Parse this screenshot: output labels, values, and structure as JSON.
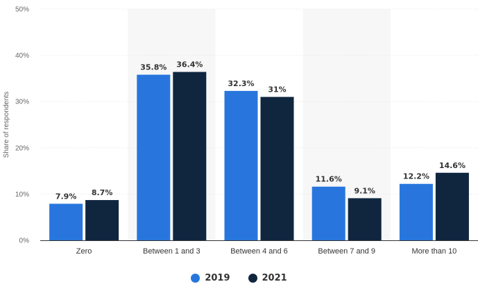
{
  "chart_data": {
    "type": "bar",
    "categories": [
      "Zero",
      "Between 1 and 3",
      "Between 4 and 6",
      "Between 7 and 9",
      "More than 10"
    ],
    "series": [
      {
        "name": "2019",
        "color": "#2876dd",
        "values": [
          7.9,
          35.8,
          32.3,
          11.6,
          12.2
        ],
        "labels": [
          "7.9%",
          "35.8%",
          "32.3%",
          "11.6%",
          "12.2%"
        ]
      },
      {
        "name": "2021",
        "color": "#10263f",
        "values": [
          8.7,
          36.4,
          31,
          9.1,
          14.6
        ],
        "labels": [
          "8.7%",
          "36.4%",
          "31%",
          "9.1%",
          "14.6%"
        ]
      }
    ],
    "ylabel": "Share of respondents",
    "ylim": [
      0,
      50
    ],
    "yticks": [
      0,
      10,
      20,
      30,
      40,
      50
    ],
    "ytick_labels": [
      "0%",
      "10%",
      "20%",
      "30%",
      "40%",
      "50%"
    ],
    "grid": true,
    "alternate_band_color": "#f7f7f7",
    "legend_position": "bottom-center"
  }
}
